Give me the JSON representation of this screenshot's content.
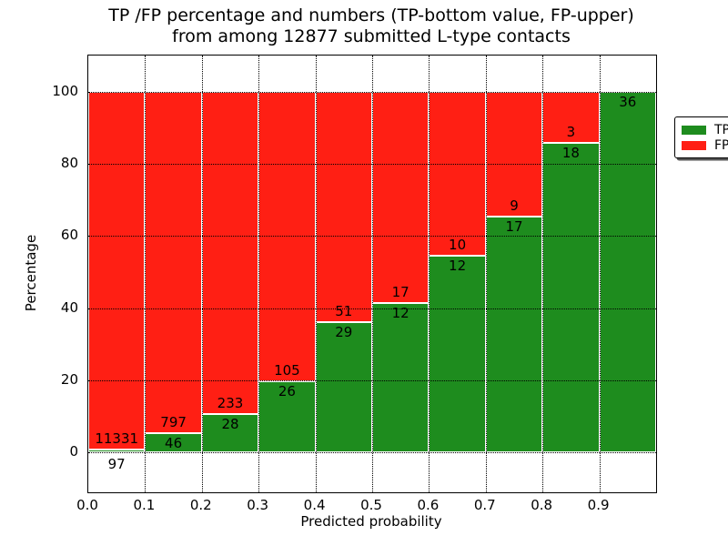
{
  "chart_data": {
    "type": "bar",
    "subtype": "stacked-percentage-histogram",
    "title": "TP /FP percentage and numbers (TP-bottom value, FP-upper)\nfrom among 12877 submitted L-type contacts",
    "title_line1": "TP /FP percentage and numbers (TP-bottom value, FP-upper)",
    "title_line2": "from among 12877 submitted L-type contacts",
    "xlabel": "Predicted probability",
    "ylabel": "Percentage",
    "bin_starts": [
      0.0,
      0.1,
      0.2,
      0.3,
      0.4,
      0.5,
      0.6,
      0.7,
      0.8,
      0.9
    ],
    "bin_width": 0.1,
    "series": [
      {
        "name": "TP",
        "color": "#1e8c1e",
        "counts": [
          97,
          46,
          28,
          26,
          29,
          12,
          12,
          17,
          18,
          36
        ]
      },
      {
        "name": "FP",
        "color": "#ff1f14",
        "counts": [
          11331,
          797,
          233,
          105,
          51,
          17,
          10,
          9,
          3,
          0
        ]
      }
    ],
    "tp_percent_of_bin": [
      0.85,
      5.46,
      10.73,
      19.85,
      36.25,
      41.38,
      54.55,
      65.38,
      85.71,
      100.0
    ],
    "xticks": [
      "0.0",
      "0.1",
      "0.2",
      "0.3",
      "0.4",
      "0.5",
      "0.6",
      "0.7",
      "0.8",
      "0.9"
    ],
    "yticks": [
      0,
      20,
      40,
      60,
      80,
      100
    ],
    "xlim": [
      0.0,
      1.0
    ],
    "ylim": [
      -11,
      110
    ],
    "grid": true,
    "grid_style": "dotted",
    "legend": {
      "position": "upper right",
      "entries": [
        {
          "label": "TP",
          "color": "#1e8c1e"
        },
        {
          "label": "FP",
          "color": "#ff1f14"
        }
      ]
    }
  }
}
